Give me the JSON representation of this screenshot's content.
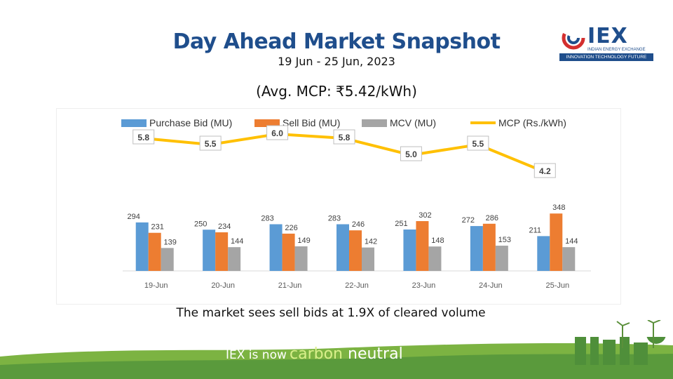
{
  "header": {
    "title": "Day Ahead Market Snapshot",
    "date_range": "19 Jun - 25 Jun, 2023",
    "avg_mcp": "(Avg. MCP: ₹5.42/kWh)"
  },
  "logo": {
    "name": "IEX",
    "full_name": "INDIAN ENERGY EXCHANGE",
    "tagline": "INNOVATION  TECHNOLOGY  FUTURE"
  },
  "note": "The market sees sell bids at 1.9X of cleared volume",
  "footer": {
    "prefix": "IEX is now",
    "word1": "carbon",
    "word2": "neutral"
  },
  "colors": {
    "purchase": "#5b9bd5",
    "sell": "#ed7d31",
    "mcv": "#a5a5a5",
    "mcp": "#ffc000",
    "title": "#1f4e8c",
    "footer_green": "#6aa84f"
  },
  "chart_data": {
    "type": "bar",
    "categories": [
      "19-Jun",
      "20-Jun",
      "21-Jun",
      "22-Jun",
      "23-Jun",
      "24-Jun",
      "25-Jun"
    ],
    "series": [
      {
        "name": "Purchase Bid (MU)",
        "values": [
          294,
          250,
          283,
          283,
          251,
          272,
          211
        ],
        "kind": "bar"
      },
      {
        "name": "Sell Bid (MU)",
        "values": [
          231,
          234,
          226,
          246,
          302,
          286,
          348
        ],
        "kind": "bar"
      },
      {
        "name": "MCV (MU)",
        "values": [
          139,
          144,
          149,
          142,
          148,
          153,
          144
        ],
        "kind": "bar"
      },
      {
        "name": "MCP (Rs./kWh)",
        "values": [
          5.8,
          5.5,
          6.0,
          5.8,
          5.0,
          5.5,
          4.2
        ],
        "kind": "line",
        "axis": "secondary"
      }
    ],
    "legend": "top",
    "grid": false
  }
}
